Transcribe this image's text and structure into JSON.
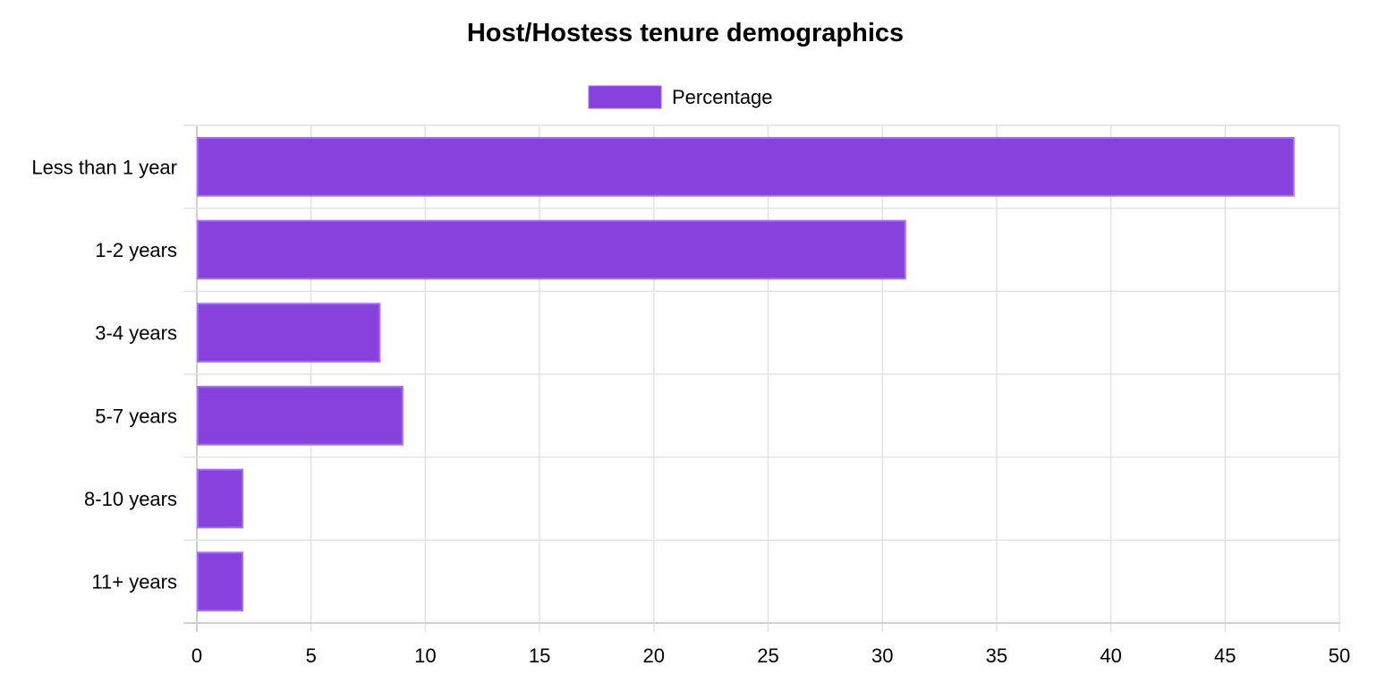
{
  "chart_data": {
    "type": "bar",
    "orientation": "horizontal",
    "title": "Host/Hostess tenure demographics",
    "categories": [
      "Less than 1 year",
      "1-2 years",
      "3-4 years",
      "5-7 years",
      "8-10 years",
      "11+ years"
    ],
    "series": [
      {
        "name": "Percentage",
        "values": [
          48,
          31,
          8,
          9,
          2,
          2
        ],
        "color": "#8742dd"
      }
    ],
    "x_ticks": [
      "0",
      "5",
      "10",
      "15",
      "20",
      "25",
      "30",
      "35",
      "40",
      "45",
      "50"
    ],
    "xlim": [
      0,
      50
    ],
    "grid": true,
    "legend_position": "top-center"
  }
}
